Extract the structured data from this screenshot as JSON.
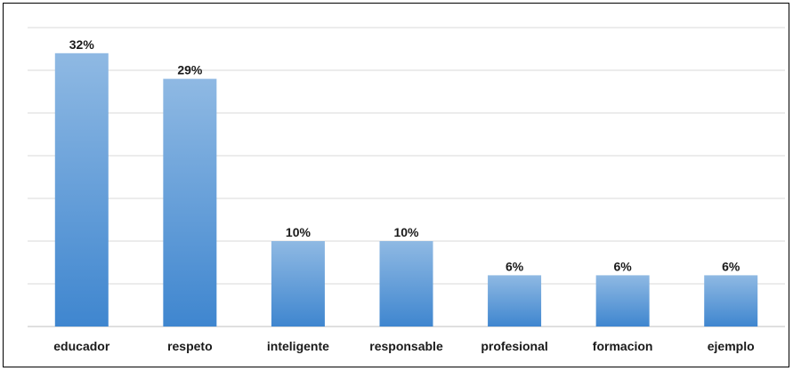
{
  "chart_data": {
    "type": "bar",
    "categories": [
      "educador",
      "respeto",
      "inteligente",
      "responsable",
      "profesional",
      "formacion",
      "ejemplo"
    ],
    "values": [
      32,
      29,
      10,
      10,
      6,
      6,
      6
    ],
    "value_labels": [
      "32%",
      "29%",
      "10%",
      "10%",
      "6%",
      "6%",
      "6%"
    ],
    "ylim": [
      0,
      35
    ],
    "grid": true,
    "y_tick_step": 5,
    "colors": {
      "bar_top": "#8fb9e3",
      "bar_bottom": "#3f86cf",
      "grid": "#d9d9d9",
      "axis": "#bfbfbf"
    }
  }
}
